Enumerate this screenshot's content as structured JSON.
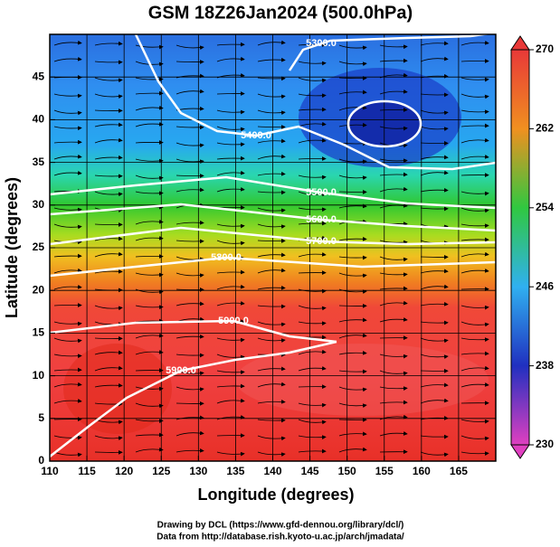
{
  "chart_data": {
    "type": "contour-map",
    "title": "GSM 18Z26Jan2024 (500.0hPa)",
    "x_label": "Longitude (degrees)",
    "y_label": "Latitude  (degrees)",
    "xlim": [
      110,
      170
    ],
    "ylim": [
      0,
      50
    ],
    "xticks": [
      110,
      115,
      120,
      125,
      130,
      135,
      140,
      145,
      150,
      155,
      160,
      165
    ],
    "yticks": [
      0,
      5,
      10,
      15,
      20,
      25,
      30,
      35,
      40,
      45
    ],
    "grid": true,
    "colorbar": {
      "lim": [
        230,
        270
      ],
      "ticks": [
        230,
        238,
        246,
        254,
        262,
        270
      ]
    },
    "contours": [
      {
        "value": 5300,
        "label": "5300.0"
      },
      {
        "value": 5400,
        "label": "5400.0"
      },
      {
        "value": 5500,
        "label": "5500.0"
      },
      {
        "value": 5600,
        "label": "5600.0"
      },
      {
        "value": 5700,
        "label": "5700.0"
      },
      {
        "value": 5800,
        "label": "5800.0"
      },
      {
        "value": 5900,
        "label": "5900.0"
      },
      {
        "value": 5900,
        "label": "5900.0"
      }
    ],
    "credits": [
      "Drawing by DCL (https://www.gfd-dennou.org/library/dcl/)",
      "Data from http://database.rish.kyoto-u.ac.jp/arch/jmadata/"
    ]
  }
}
